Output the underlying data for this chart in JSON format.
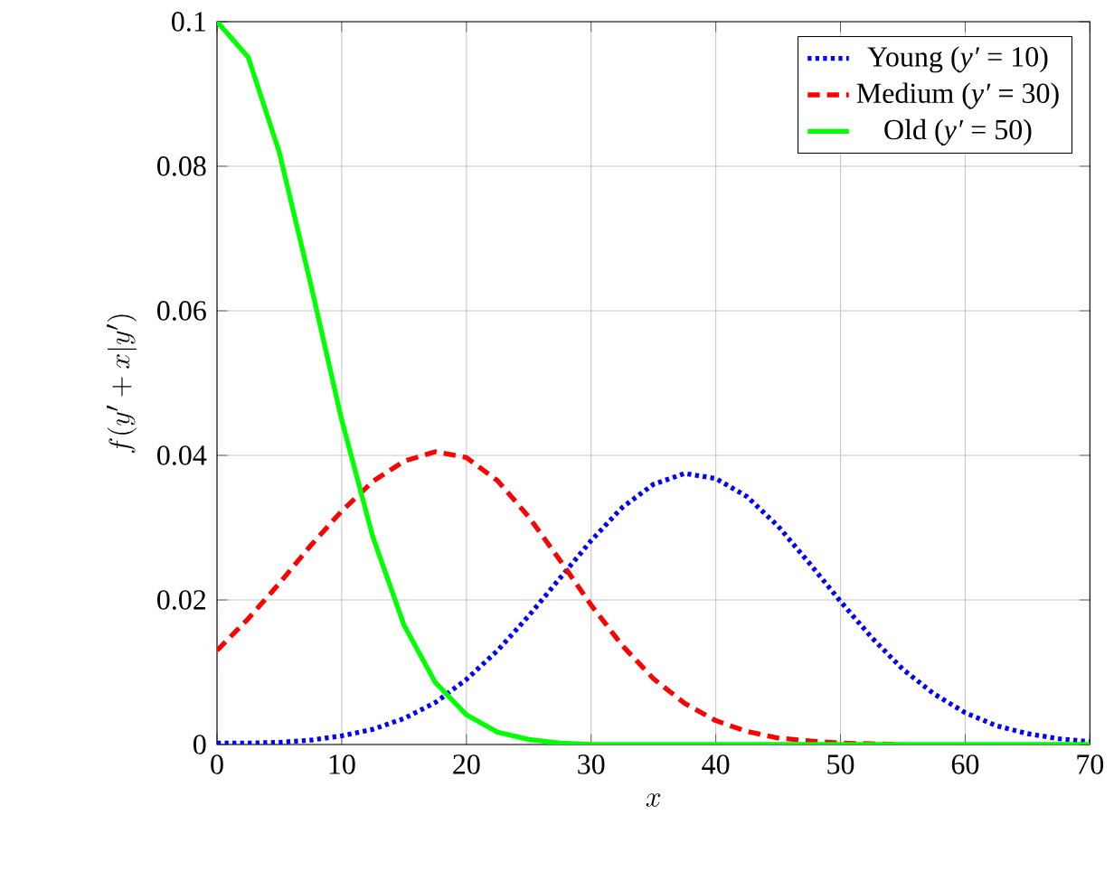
{
  "chart_data": {
    "type": "line",
    "xlabel": "x",
    "ylabel": "f(y'+x|y')",
    "x": [
      0,
      2.5,
      5,
      7.5,
      10,
      12.5,
      15,
      17.5,
      20,
      22.5,
      25,
      27.5,
      30,
      32.5,
      35,
      37.5,
      40,
      42.5,
      45,
      47.5,
      50,
      52.5,
      55,
      57.5,
      60,
      62.5,
      65,
      67.5,
      70
    ],
    "series": [
      {
        "name": "Young (*y′* = 10)",
        "color": "#0000ff",
        "line_style": "dotted",
        "values": [
          0.0002,
          0.0002,
          0.0003,
          0.0006,
          0.0012,
          0.0021,
          0.0036,
          0.0058,
          0.009,
          0.013,
          0.0178,
          0.023,
          0.0282,
          0.0328,
          0.036,
          0.0375,
          0.0368,
          0.0343,
          0.0302,
          0.0251,
          0.0198,
          0.0148,
          0.0104,
          0.007,
          0.0044,
          0.0026,
          0.0015,
          0.0008,
          0.0004
        ]
      },
      {
        "name": "Medium (*y′* = 30)",
        "color": "#ff0000",
        "line_style": "dashed",
        "values": [
          0.013,
          0.0174,
          0.0223,
          0.0275,
          0.0323,
          0.0364,
          0.0392,
          0.0405,
          0.0397,
          0.0365,
          0.0315,
          0.0255,
          0.0193,
          0.0137,
          0.0091,
          0.0057,
          0.0033,
          0.0018,
          0.0009,
          0.0005,
          0.0002,
          0.0001,
          0,
          null,
          null,
          null,
          null,
          null,
          null
        ]
      },
      {
        "name": "Old (*y′* = 50)",
        "color": "#00ff00",
        "line_style": "solid",
        "values": [
          0.1,
          0.0951,
          0.0819,
          0.0638,
          0.0449,
          0.0287,
          0.0165,
          0.0086,
          0.0041,
          0.0017,
          0.0007,
          0.0002,
          0,
          0,
          0,
          0,
          0,
          0,
          0,
          0,
          0,
          0,
          0,
          0,
          0,
          0,
          0,
          0,
          0
        ]
      }
    ],
    "xlim": [
      0,
      70
    ],
    "xticks": [
      0,
      10,
      20,
      30,
      40,
      50,
      60,
      70
    ],
    "ylim": [
      0,
      0.1
    ],
    "yticks": [
      0,
      0.02,
      0.04,
      0.06,
      0.08,
      0.1
    ],
    "grid": true,
    "legend": "top right"
  }
}
